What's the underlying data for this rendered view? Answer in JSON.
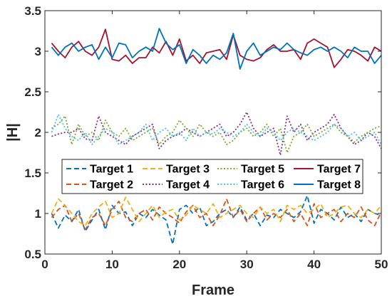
{
  "chart_data": {
    "type": "line",
    "title": "",
    "xlabel": "Frame",
    "ylabel": "|H|",
    "xlim": [
      0,
      50
    ],
    "ylim": [
      0.5,
      3.5
    ],
    "xticks": [
      0,
      10,
      20,
      30,
      40,
      50
    ],
    "yticks": [
      0.5,
      1,
      1.5,
      2,
      2.5,
      3,
      3.5
    ],
    "xtick_labels": [
      "0",
      "10",
      "20",
      "30",
      "40",
      "50"
    ],
    "ytick_labels": [
      "0.5",
      "1",
      "1.5",
      "2",
      "2.5",
      "3",
      "3.5"
    ],
    "grid": false,
    "legend_position": "center-left",
    "x": [
      1,
      2,
      3,
      4,
      5,
      6,
      7,
      8,
      9,
      10,
      11,
      12,
      13,
      14,
      15,
      16,
      17,
      18,
      19,
      20,
      21,
      22,
      23,
      24,
      25,
      26,
      27,
      28,
      29,
      30,
      31,
      32,
      33,
      34,
      35,
      36,
      37,
      38,
      39,
      40,
      41,
      42,
      43,
      44,
      45,
      46,
      47,
      48,
      49,
      50
    ],
    "series": [
      {
        "name": "Target 1",
        "color": "#0072BD",
        "dash": "dashed",
        "values": [
          1.0,
          0.82,
          0.98,
          0.9,
          1.05,
          0.78,
          0.92,
          1.05,
          0.8,
          1.1,
          1.0,
          1.02,
          0.85,
          1.0,
          0.95,
          1.05,
          0.98,
          0.92,
          0.62,
          1.05,
          1.1,
          1.0,
          1.08,
          0.85,
          0.9,
          1.0,
          1.05,
          0.95,
          1.08,
          0.92,
          1.0,
          0.85,
          0.98,
          0.95,
          1.05,
          1.0,
          0.95,
          1.02,
          1.22,
          0.88,
          1.05,
          1.0,
          0.92,
          1.08,
          0.95,
          1.0,
          0.9,
          1.05,
          1.0,
          0.98
        ]
      },
      {
        "name": "Target 2",
        "color": "#D95319",
        "dash": "dashed",
        "values": [
          0.95,
          1.05,
          1.1,
          0.9,
          1.0,
          0.8,
          0.95,
          1.0,
          0.85,
          1.05,
          1.15,
          0.95,
          0.9,
          1.0,
          1.05,
          0.92,
          1.08,
          1.0,
          0.95,
          0.88,
          1.02,
          1.1,
          0.95,
          1.0,
          0.85,
          0.98,
          1.18,
          0.95,
          1.05,
          0.9,
          1.0,
          1.08,
          0.92,
          1.0,
          0.95,
          1.05,
          0.9,
          1.0,
          0.85,
          1.12,
          0.95,
          1.0,
          1.05,
          0.9,
          1.0,
          0.95,
          1.08,
          0.92,
          0.85,
          1.02
        ]
      },
      {
        "name": "Target 3",
        "color": "#EDB120",
        "dash": "dashed",
        "values": [
          1.0,
          1.18,
          1.1,
          1.0,
          0.9,
          0.85,
          1.0,
          1.08,
          1.15,
          0.95,
          1.0,
          1.2,
          1.05,
          0.9,
          1.0,
          1.1,
          0.95,
          1.02,
          1.05,
          0.92,
          0.98,
          1.1,
          1.05,
          1.0,
          1.12,
          0.95,
          1.0,
          1.05,
          1.1,
          1.0,
          0.95,
          1.08,
          1.0,
          1.05,
          0.9,
          1.1,
          1.05,
          1.1,
          1.0,
          1.05,
          1.12,
          0.95,
          1.0,
          1.08,
          1.1,
          1.0,
          0.95,
          1.05,
          1.0,
          1.1
        ]
      },
      {
        "name": "Target 4",
        "color": "#7E2F8E",
        "dash": "dotted",
        "values": [
          1.95,
          1.98,
          2.0,
          2.0,
          2.05,
          1.92,
          1.9,
          2.2,
          2.0,
          1.95,
          1.9,
          1.85,
          1.95,
          2.0,
          2.05,
          2.1,
          1.8,
          1.9,
          1.95,
          1.98,
          2.05,
          2.0,
          1.95,
          2.0,
          2.05,
          2.1,
          1.95,
          2.0,
          2.1,
          2.25,
          2.05,
          1.95,
          2.0,
          2.05,
          1.72,
          2.2,
          2.0,
          2.1,
          1.9,
          2.0,
          2.05,
          2.1,
          2.22,
          2.05,
          1.95,
          1.85,
          1.9,
          2.0,
          1.95,
          1.8
        ]
      },
      {
        "name": "Target 5",
        "color": "#77AC30",
        "dash": "dotted",
        "values": [
          2.05,
          2.1,
          2.2,
          1.85,
          2.1,
          1.95,
          2.0,
          1.9,
          2.15,
          2.0,
          1.95,
          2.05,
          1.9,
          1.95,
          2.0,
          2.05,
          1.85,
          1.95,
          2.0,
          2.15,
          2.05,
          1.95,
          2.1,
          2.0,
          1.95,
          2.0,
          1.85,
          1.9,
          2.0,
          2.05,
          1.95,
          2.0,
          2.1,
          1.95,
          2.05,
          1.75,
          1.95,
          2.0,
          2.1,
          1.95,
          2.0,
          2.05,
          2.1,
          2.0,
          1.95,
          1.88,
          1.95,
          2.0,
          2.05,
          2.08
        ]
      },
      {
        "name": "Target 6",
        "color": "#4DBEEE",
        "dash": "dotted",
        "values": [
          2.0,
          2.22,
          2.05,
          1.95,
          1.9,
          2.0,
          1.85,
          1.95,
          2.05,
          2.0,
          1.85,
          1.9,
          1.95,
          2.0,
          2.1,
          1.9,
          2.0,
          2.05,
          1.95,
          2.0,
          1.9,
          2.05,
          1.95,
          2.0,
          1.98,
          2.05,
          2.0,
          1.95,
          2.0,
          2.1,
          2.0,
          1.95,
          2.05,
          2.0,
          1.9,
          2.0,
          2.05,
          2.0,
          1.95,
          1.9,
          1.95,
          2.0,
          2.1,
          2.05,
          1.95,
          2.0,
          1.9,
          1.95,
          2.0,
          1.85
        ]
      },
      {
        "name": "Target 7",
        "color": "#A2142F",
        "dash": "solid",
        "values": [
          3.1,
          3.0,
          2.92,
          3.05,
          3.12,
          3.0,
          2.95,
          3.05,
          3.27,
          2.9,
          2.88,
          2.95,
          2.85,
          2.92,
          2.92,
          3.05,
          2.98,
          3.12,
          2.95,
          3.15,
          2.88,
          2.95,
          2.85,
          2.98,
          3.0,
          3.02,
          2.9,
          3.2,
          2.95,
          2.9,
          2.88,
          2.92,
          3.02,
          3.08,
          3.0,
          3.0,
          3.02,
          2.9,
          3.1,
          3.15,
          3.1,
          3.05,
          2.8,
          2.9,
          3.02,
          3.0,
          2.95,
          2.88,
          3.05,
          3.0
        ]
      },
      {
        "name": "Target 8",
        "color": "#0072BD",
        "dash": "solid",
        "values": [
          3.05,
          2.95,
          3.05,
          3.1,
          3.0,
          3.05,
          3.08,
          2.9,
          3.05,
          2.92,
          3.1,
          3.08,
          2.92,
          3.0,
          3.05,
          3.0,
          3.28,
          3.1,
          3.02,
          3.08,
          2.85,
          3.02,
          2.95,
          2.85,
          2.95,
          2.9,
          2.98,
          3.22,
          2.78,
          3.0,
          3.1,
          2.95,
          3.0,
          3.05,
          3.02,
          3.1,
          3.02,
          2.98,
          2.95,
          3.02,
          3.05,
          3.0,
          3.05,
          3.0,
          2.92,
          3.05,
          3.0,
          3.0,
          2.85,
          2.95
        ]
      }
    ]
  }
}
